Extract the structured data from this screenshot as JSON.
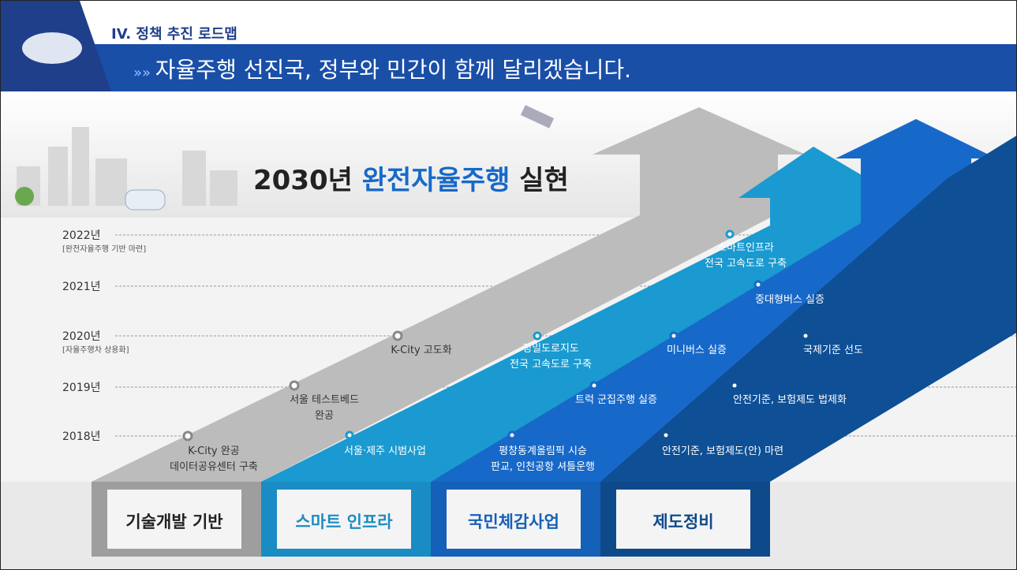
{
  "header": {
    "section": "IV. 정책 추진 로드맵",
    "headline": "자율주행 선진국, 정부와 민간이 함께 달리겠습니다."
  },
  "hero": {
    "title_prefix": "2030년",
    "title_highlight": "완전자율주행",
    "title_suffix": "실현"
  },
  "years": [
    {
      "label": "2022년",
      "note": "[완전자율주행 기반 마련]"
    },
    {
      "label": "2021년"
    },
    {
      "label": "2020년",
      "note": "[자율주행차 상용화]"
    },
    {
      "label": "2019년"
    },
    {
      "label": "2018년"
    }
  ],
  "milestones": [
    {
      "lines": [
        "K-City 완공",
        "데이터공유센터 구축"
      ]
    },
    {
      "lines": [
        "서울 테스트베드",
        "완공"
      ]
    },
    {
      "lines": [
        "K-City 고도화"
      ]
    },
    {
      "lines": [
        "서울·제주 시범사업"
      ]
    },
    {
      "lines": [
        "정밀도로지도",
        "전국 고속도로 구축"
      ]
    },
    {
      "lines": [
        "평창동계올림픽 시승",
        "판교, 인천공항 셔틀운행"
      ]
    },
    {
      "lines": [
        "트럭 군집주행 실증"
      ]
    },
    {
      "lines": [
        "미니버스 실증"
      ]
    },
    {
      "lines": [
        "스마트인프라",
        "전국 고속도로 구축"
      ]
    },
    {
      "lines": [
        "중대형버스 실증"
      ]
    },
    {
      "lines": [
        "국제기준 선도"
      ]
    },
    {
      "lines": [
        "안전기준, 보험제도 법제화"
      ]
    },
    {
      "lines": [
        "안전기준, 보험제도(안) 마련"
      ]
    }
  ],
  "categories": [
    "기술개발 기반",
    "스마트 인프라",
    "국민체감사업",
    "제도정비"
  ]
}
